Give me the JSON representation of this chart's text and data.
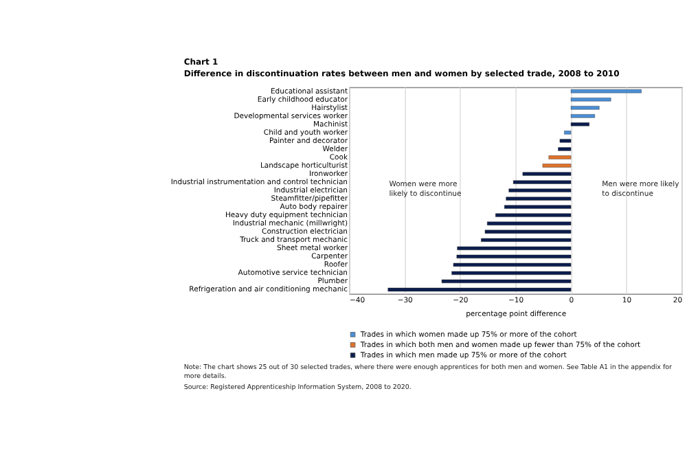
{
  "chart_data": {
    "type": "bar",
    "orientation": "horizontal",
    "title": "Chart 1",
    "subtitle": "Difference in discontinuation  rates between men and women by selected trade, 2008 to 2010",
    "xlabel": "percentage point difference",
    "categories": [
      "Educational assistant",
      "Early childhood educator",
      "Hairstylist",
      "Developmental services worker",
      "Machinist",
      "Child and youth worker",
      "Painter and decorator",
      "Welder",
      "Cook",
      "Landscape horticulturist",
      "Ironworker",
      "Industrial instrumentation and control technician",
      "Industrial electrician",
      "Steamfitter/pipefitter",
      "Auto body repairer",
      "Heavy duty equipment technician",
      "Industrial mechanic (millwright)",
      "Construction electrician",
      "Truck and transport mechanic",
      "Sheet metal worker",
      "Carpenter",
      "Roofer",
      "Automotive service technician",
      "Plumber",
      "Refrigeration and air conditioning mechanic"
    ],
    "series": [
      {
        "name": "Trades in which women made up 75% or more of the cohort",
        "color": "#4a8fd6",
        "values": [
          12.7,
          7.2,
          5.1,
          4.3,
          null,
          -1.2,
          null,
          null,
          null,
          null,
          null,
          null,
          null,
          null,
          null,
          null,
          null,
          null,
          null,
          null,
          null,
          null,
          null,
          null,
          null
        ]
      },
      {
        "name": "Trades in which both men and women made up fewer than 75% of the cohort",
        "color": "#e0732a",
        "values": [
          null,
          null,
          null,
          null,
          null,
          null,
          null,
          null,
          -4.0,
          -5.1,
          null,
          null,
          null,
          null,
          null,
          null,
          null,
          null,
          null,
          null,
          null,
          null,
          null,
          null,
          null
        ]
      },
      {
        "name": "Trades in which men made up 75% or more of the cohort",
        "color": "#0b1d4d",
        "values": [
          null,
          null,
          null,
          null,
          3.3,
          null,
          -2.0,
          -2.3,
          null,
          null,
          -8.7,
          -10.4,
          -11.2,
          -11.7,
          -12.0,
          -13.6,
          -15.1,
          -15.5,
          -16.2,
          -20.5,
          -20.6,
          -21.2,
          -21.5,
          -23.3,
          -33.0
        ]
      }
    ],
    "xlim": [
      -40,
      20
    ],
    "xticks": [
      -40,
      -30,
      -20,
      -10,
      0,
      10,
      20
    ],
    "grid": "x",
    "legend": "bottom",
    "annotations": [
      "Women were more\nlikely to discontinue",
      "Men were more likely\nto discontinue",
      "Note: The chart shows 25 out of 30 selected trades, where there were enough apprentices for both men and women. See Table A1 in the appendix for\nmore details.",
      "Source: Registered Apprenticeship Information System, 2008 to 2020."
    ]
  }
}
